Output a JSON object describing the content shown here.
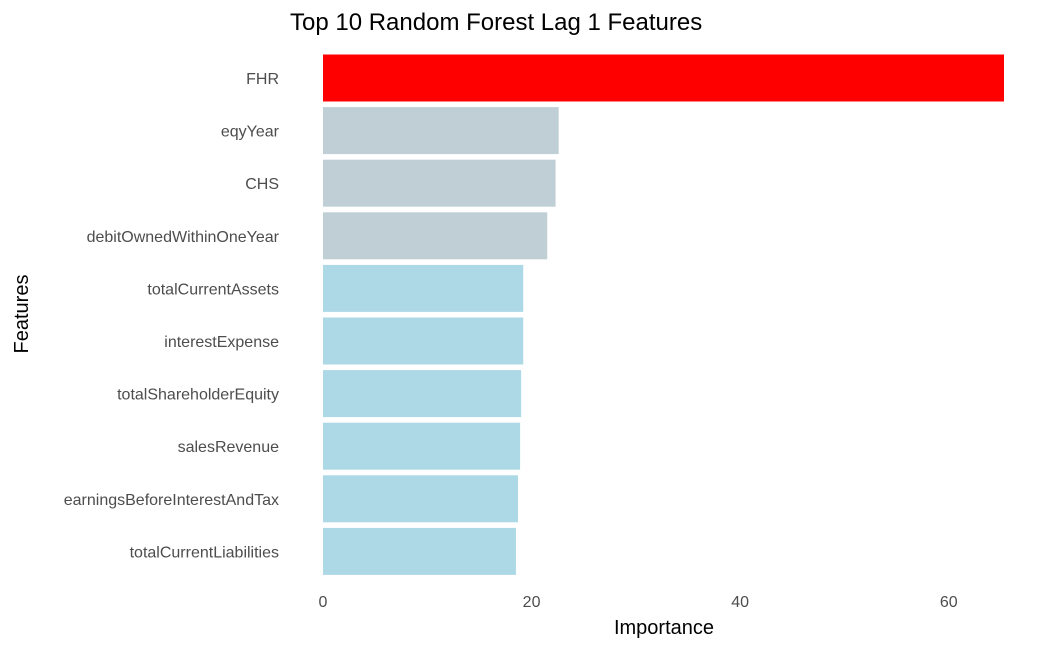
{
  "chart_data": {
    "type": "bar",
    "orientation": "horizontal",
    "title": "Top 10 Random Forest Lag 1 Features",
    "xlabel": "Importance",
    "ylabel": "Features",
    "xlim": [
      0,
      65.3
    ],
    "x_ticks": [
      0,
      20,
      40,
      60
    ],
    "grid": false,
    "legend": "none",
    "categories": [
      "FHR",
      "eqyYear",
      "CHS",
      "debitOwnedWithinOneYear",
      "totalCurrentAssets",
      "interestExpense",
      "totalShareholderEquity",
      "salesRevenue",
      "earningsBeforeInterestAndTax",
      "totalCurrentLiabilities"
    ],
    "values": [
      65.3,
      22.6,
      22.3,
      21.5,
      19.2,
      19.2,
      19.0,
      18.9,
      18.7,
      18.5
    ],
    "colors": [
      "#ff0000",
      "#c0cfd6",
      "#c0cfd6",
      "#c0cfd6",
      "#add8e6",
      "#add8e6",
      "#add8e6",
      "#add8e6",
      "#add8e6",
      "#add8e6"
    ]
  }
}
